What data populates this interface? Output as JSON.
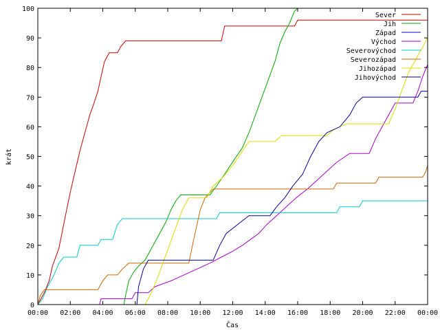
{
  "chart_data": {
    "type": "line",
    "title": "",
    "xlabel": "Čas",
    "ylabel": "krát",
    "xlim": [
      0,
      24
    ],
    "ylim": [
      0,
      100
    ],
    "x_ticks": [
      0,
      2,
      4,
      6,
      8,
      10,
      12,
      14,
      16,
      18,
      20,
      22,
      24
    ],
    "x_tick_labels": [
      "00:00",
      "02:00",
      "04:00",
      "06:00",
      "08:00",
      "10:00",
      "12:00",
      "14:00",
      "16:00",
      "18:00",
      "20:00",
      "22:00",
      "00:00"
    ],
    "y_ticks": [
      0,
      10,
      20,
      30,
      40,
      50,
      60,
      70,
      80,
      90,
      100
    ],
    "y_tick_labels": [
      "0",
      "10",
      "20",
      "30",
      "40",
      "50",
      "60",
      "70",
      "80",
      "90",
      "100"
    ],
    "grid": false,
    "legend_position": "top-right",
    "series": [
      {
        "name": "Sever",
        "color": "#cc0000",
        "points": [
          [
            0,
            0
          ],
          [
            0.2,
            2
          ],
          [
            0.4,
            4
          ],
          [
            0.7,
            8
          ],
          [
            0.9,
            13
          ],
          [
            1.3,
            19
          ],
          [
            1.7,
            30
          ],
          [
            2.0,
            38
          ],
          [
            2.3,
            45
          ],
          [
            2.6,
            52
          ],
          [
            2.9,
            58
          ],
          [
            3.2,
            64
          ],
          [
            3.4,
            67
          ],
          [
            3.7,
            72
          ],
          [
            3.9,
            77
          ],
          [
            4.1,
            82
          ],
          [
            4.4,
            85
          ],
          [
            4.9,
            85
          ],
          [
            5.1,
            87
          ],
          [
            5.4,
            89
          ],
          [
            11.3,
            89
          ],
          [
            11.5,
            94
          ],
          [
            15.8,
            94
          ],
          [
            16.0,
            96
          ],
          [
            24,
            96
          ]
        ]
      },
      {
        "name": "Jih",
        "color": "#00aa00",
        "points": [
          [
            0,
            0
          ],
          [
            5.3,
            0
          ],
          [
            5.4,
            3
          ],
          [
            5.6,
            8
          ],
          [
            5.9,
            11
          ],
          [
            6.2,
            13
          ],
          [
            6.6,
            15
          ],
          [
            7.0,
            19
          ],
          [
            7.5,
            24
          ],
          [
            7.9,
            28
          ],
          [
            8.2,
            32
          ],
          [
            8.5,
            35
          ],
          [
            8.8,
            37
          ],
          [
            10.6,
            37
          ],
          [
            11.0,
            40
          ],
          [
            11.5,
            44
          ],
          [
            12.1,
            49
          ],
          [
            12.6,
            53
          ],
          [
            13.0,
            58
          ],
          [
            13.4,
            64
          ],
          [
            13.8,
            70
          ],
          [
            14.2,
            76
          ],
          [
            14.6,
            82
          ],
          [
            14.9,
            88
          ],
          [
            15.2,
            92
          ],
          [
            15.5,
            95
          ],
          [
            15.8,
            99
          ],
          [
            16.0,
            100
          ]
        ]
      },
      {
        "name": "Západ",
        "color": "#0000cc",
        "points": [
          [
            0,
            0
          ],
          [
            24,
            0
          ]
        ]
      },
      {
        "name": "Východ",
        "color": "#aa00cc",
        "points": [
          [
            0,
            0
          ],
          [
            3.8,
            0
          ],
          [
            3.9,
            2
          ],
          [
            5.8,
            2
          ],
          [
            6.0,
            4
          ],
          [
            6.8,
            4
          ],
          [
            7.2,
            6
          ],
          [
            8.2,
            8
          ],
          [
            9.0,
            10
          ],
          [
            9.8,
            12
          ],
          [
            10.6,
            14
          ],
          [
            11.3,
            16
          ],
          [
            12.0,
            18
          ],
          [
            12.6,
            20
          ],
          [
            13.1,
            22
          ],
          [
            13.6,
            24
          ],
          [
            14.1,
            27
          ],
          [
            14.7,
            30
          ],
          [
            15.3,
            33
          ],
          [
            15.9,
            36
          ],
          [
            16.6,
            39
          ],
          [
            17.2,
            42
          ],
          [
            17.8,
            45
          ],
          [
            18.4,
            48
          ],
          [
            19.2,
            51
          ],
          [
            20.4,
            51
          ],
          [
            20.8,
            56
          ],
          [
            21.2,
            60
          ],
          [
            21.6,
            64
          ],
          [
            22.0,
            68
          ],
          [
            23.1,
            68
          ],
          [
            23.4,
            72
          ],
          [
            23.7,
            77
          ],
          [
            24,
            81
          ]
        ]
      },
      {
        "name": "Severovýchod",
        "color": "#00cccc",
        "points": [
          [
            0,
            0
          ],
          [
            0.3,
            2
          ],
          [
            0.6,
            6
          ],
          [
            1.0,
            10
          ],
          [
            1.3,
            14
          ],
          [
            1.6,
            16
          ],
          [
            2.4,
            16
          ],
          [
            2.6,
            20
          ],
          [
            3.7,
            20
          ],
          [
            3.9,
            22
          ],
          [
            4.6,
            22
          ],
          [
            4.9,
            27
          ],
          [
            5.2,
            29
          ],
          [
            11.0,
            29
          ],
          [
            11.2,
            31
          ],
          [
            18.4,
            31
          ],
          [
            18.6,
            33
          ],
          [
            19.8,
            33
          ],
          [
            20.0,
            35
          ],
          [
            24,
            35
          ]
        ]
      },
      {
        "name": "Severozápad",
        "color": "#cc6600",
        "points": [
          [
            0,
            0
          ],
          [
            0.15,
            3
          ],
          [
            0.4,
            5
          ],
          [
            3.7,
            5
          ],
          [
            4.0,
            8
          ],
          [
            4.3,
            10
          ],
          [
            4.9,
            10
          ],
          [
            5.2,
            12
          ],
          [
            5.6,
            14
          ],
          [
            9.3,
            14
          ],
          [
            9.6,
            22
          ],
          [
            10.0,
            32
          ],
          [
            10.3,
            36
          ],
          [
            10.8,
            39
          ],
          [
            18.2,
            39
          ],
          [
            18.4,
            41
          ],
          [
            20.8,
            41
          ],
          [
            21.0,
            43
          ],
          [
            23.7,
            43
          ],
          [
            23.9,
            45
          ],
          [
            24,
            47
          ]
        ]
      },
      {
        "name": "Jihozápad",
        "color": "#dddd00",
        "points": [
          [
            0,
            0
          ],
          [
            6.6,
            0
          ],
          [
            6.9,
            3
          ],
          [
            7.3,
            8
          ],
          [
            7.7,
            14
          ],
          [
            8.1,
            20
          ],
          [
            8.5,
            26
          ],
          [
            8.9,
            32
          ],
          [
            9.3,
            36
          ],
          [
            10.4,
            36
          ],
          [
            10.8,
            40
          ],
          [
            11.4,
            43
          ],
          [
            12.0,
            47
          ],
          [
            12.5,
            51
          ],
          [
            13.0,
            55
          ],
          [
            14.6,
            55
          ],
          [
            15.0,
            57
          ],
          [
            17.8,
            57
          ],
          [
            18.2,
            59
          ],
          [
            19.0,
            61
          ],
          [
            21.6,
            61
          ],
          [
            22.0,
            66
          ],
          [
            22.4,
            72
          ],
          [
            22.8,
            78
          ],
          [
            23.2,
            82
          ],
          [
            23.6,
            86
          ],
          [
            24,
            90
          ]
        ]
      },
      {
        "name": "Jihovýchod",
        "color": "#000099",
        "points": [
          [
            0,
            0
          ],
          [
            6.1,
            0
          ],
          [
            6.2,
            6
          ],
          [
            6.5,
            12
          ],
          [
            6.8,
            15
          ],
          [
            10.8,
            15
          ],
          [
            11.2,
            20
          ],
          [
            11.6,
            24
          ],
          [
            12.3,
            27
          ],
          [
            13.0,
            30
          ],
          [
            14.3,
            30
          ],
          [
            14.7,
            33
          ],
          [
            15.2,
            36
          ],
          [
            15.7,
            40
          ],
          [
            16.3,
            44
          ],
          [
            16.8,
            50
          ],
          [
            17.3,
            55
          ],
          [
            17.8,
            58
          ],
          [
            18.6,
            60
          ],
          [
            19.2,
            64
          ],
          [
            19.6,
            68
          ],
          [
            20.0,
            70
          ],
          [
            23.4,
            70
          ],
          [
            23.6,
            72
          ],
          [
            24,
            72
          ]
        ]
      }
    ]
  }
}
